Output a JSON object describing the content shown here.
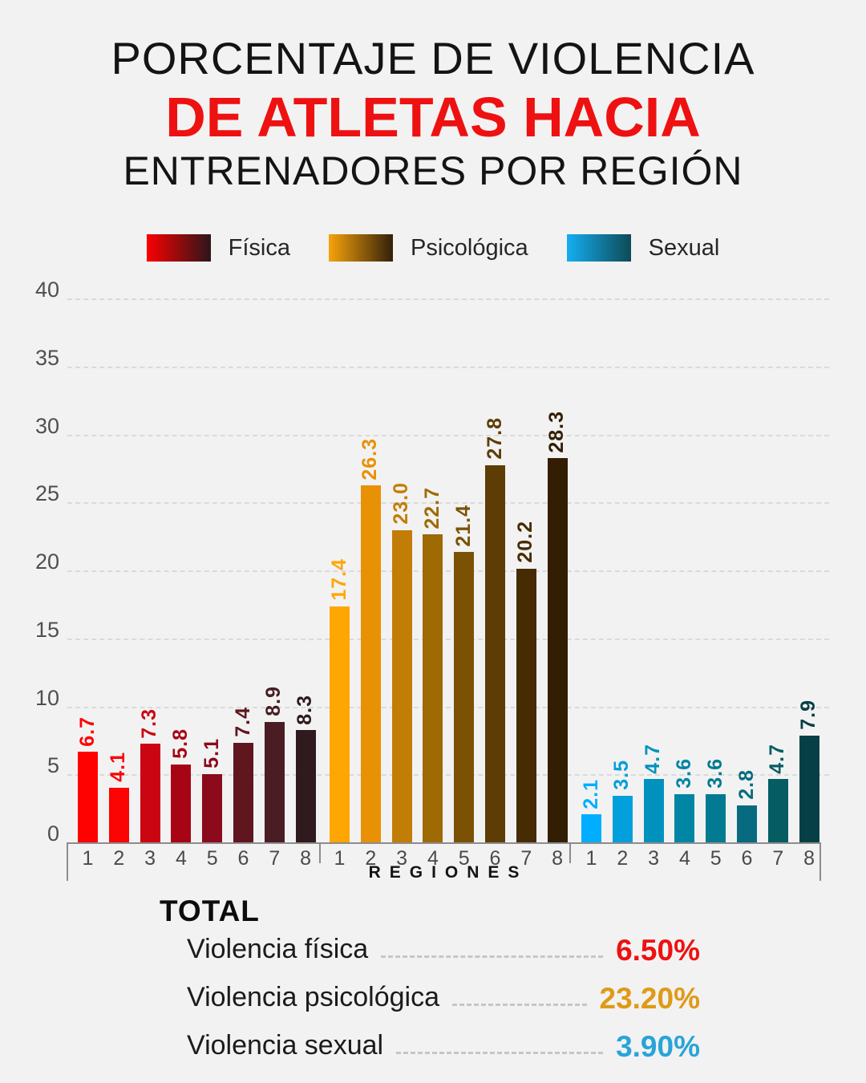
{
  "title": {
    "line1": "PORCENTAJE DE VIOLENCIA",
    "line2": "DE ATLETAS HACIA",
    "line3": "ENTRENADORES POR REGIÓN"
  },
  "legend": {
    "items": [
      {
        "label": "Física",
        "gradient_from": "#fb0000",
        "gradient_to": "#2b161a"
      },
      {
        "label": "Psicológica",
        "gradient_from": "#f6a30b",
        "gradient_to": "#33200a"
      },
      {
        "label": "Sexual",
        "gradient_from": "#15aef2",
        "gradient_to": "#0d4a55"
      }
    ]
  },
  "chart_data": {
    "type": "bar",
    "title": "Porcentaje de violencia de atletas hacia entrenadores por región",
    "categories": [
      "1",
      "2",
      "3",
      "4",
      "5",
      "6",
      "7",
      "8"
    ],
    "xlabel": "REGIONES",
    "ylabel": "",
    "ylim": [
      0,
      40
    ],
    "y_ticks": [
      40,
      35,
      30,
      25,
      20,
      15,
      10,
      5,
      0
    ],
    "grid": "horizontal-dashed",
    "legend_position": "top",
    "series": [
      {
        "name": "Física",
        "values": [
          6.7,
          4.1,
          7.3,
          5.8,
          5.1,
          7.4,
          8.9,
          8.3
        ],
        "labels": [
          "6.7",
          "4.1",
          "7.3",
          "5.8",
          "5.1",
          "7.4",
          "8.9",
          "8.3"
        ],
        "colors": [
          "#fe0101",
          "#fb0404",
          "#cb0511",
          "#a70515",
          "#8b0a1b",
          "#5f161f",
          "#4a1c23",
          "#2f1a1e"
        ]
      },
      {
        "name": "Psicológica",
        "values": [
          17.4,
          26.3,
          23.0,
          22.7,
          21.4,
          27.8,
          20.2,
          28.3
        ],
        "labels": [
          "17.4",
          "26.3",
          "23.0",
          "22.7",
          "21.4",
          "27.8",
          "20.2",
          "28.3"
        ],
        "colors": [
          "#ffa602",
          "#e89104",
          "#c17d05",
          "#9d6a04",
          "#7b5203",
          "#5d3d04",
          "#472b03",
          "#331e04"
        ]
      },
      {
        "name": "Sexual",
        "values": [
          2.1,
          3.5,
          4.7,
          3.6,
          3.6,
          2.8,
          4.7,
          7.9
        ],
        "labels": [
          "2.1",
          "3.5",
          "4.7",
          "3.6",
          "3.6",
          "2.8",
          "4.7",
          "7.9"
        ],
        "colors": [
          "#00aeff",
          "#019fdb",
          "#0092bd",
          "#0085a4",
          "#017a92",
          "#086a80",
          "#055d63",
          "#063f45"
        ]
      }
    ]
  },
  "totals": {
    "heading": "TOTAL",
    "rows": [
      {
        "label": "Violencia física",
        "value": "6.50%",
        "color": "#ee1111"
      },
      {
        "label": "Violencia psicológica",
        "value": "23.20%",
        "color": "#e09a16"
      },
      {
        "label": "Violencia sexual",
        "value": "3.90%",
        "color": "#28a4d9"
      }
    ]
  }
}
